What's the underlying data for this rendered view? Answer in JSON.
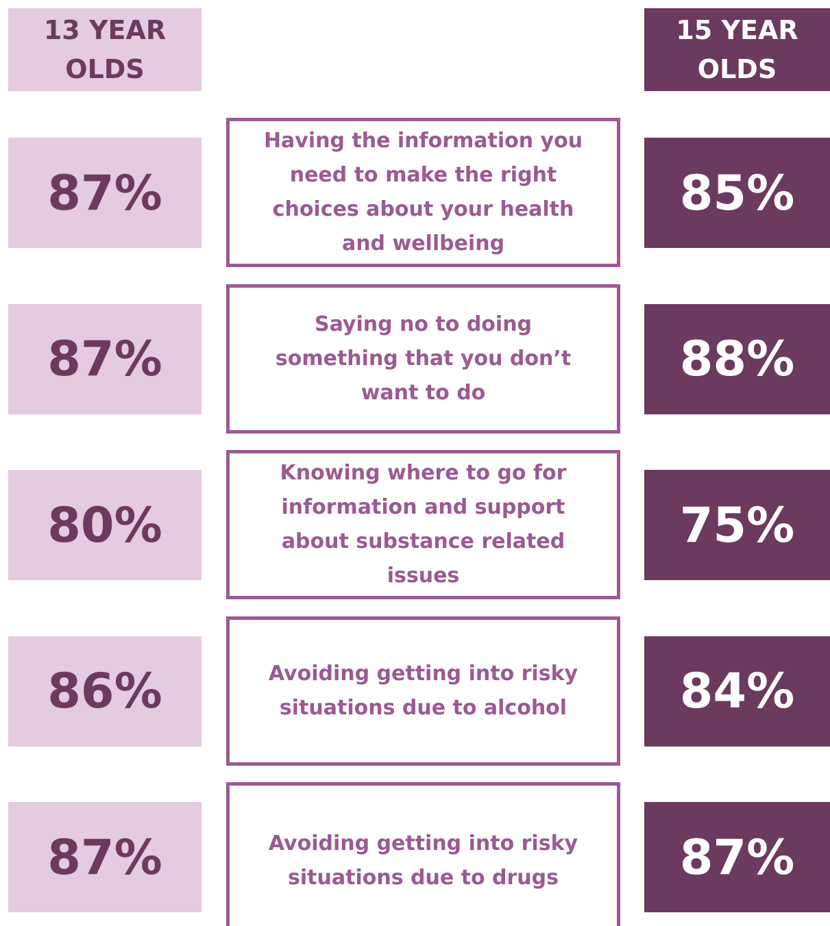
{
  "headers": {
    "left": "13 YEAR OLDS",
    "right": "15 YEAR OLDS"
  },
  "rows": [
    {
      "label": "Having the information you need to make the right choices about your health and wellbeing",
      "left": "87%",
      "right": "85%"
    },
    {
      "label": "Saying no to doing something that you don’t want to do",
      "left": "87%",
      "right": "88%"
    },
    {
      "label": "Knowing where to go for information and support about substance related issues",
      "left": "80%",
      "right": "75%"
    },
    {
      "label": "Avoiding getting into risky situations due to alcohol",
      "left": "86%",
      "right": "84%"
    },
    {
      "label": "Avoiding getting into risky situations due to drugs",
      "left": "87%",
      "right": "87%"
    }
  ]
}
